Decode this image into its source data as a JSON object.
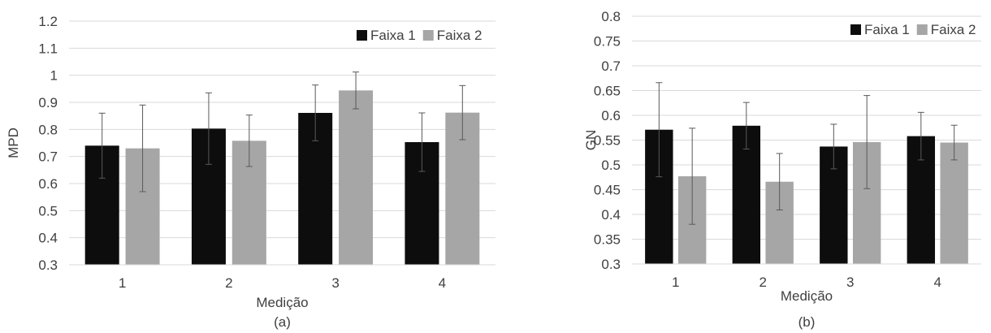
{
  "chart_data": [
    {
      "type": "bar",
      "caption": "(a)",
      "xlabel": "Medição",
      "ylabel": "MPD",
      "ylim": [
        0.3,
        1.2
      ],
      "y_step": 0.1,
      "y_tick_labels": [
        "0.3",
        "0.4",
        "0.5",
        "0.6",
        "0.7",
        "0.8",
        "0.9",
        "1",
        "1.1",
        "1.2"
      ],
      "categories": [
        "1",
        "2",
        "3",
        "4"
      ],
      "grid": true,
      "legend": "top-right",
      "series": [
        {
          "name": "Faixa 1",
          "color": "#0d0d0d",
          "values": [
            0.74,
            0.803,
            0.861,
            0.753
          ],
          "err": [
            0.12,
            0.132,
            0.103,
            0.108
          ]
        },
        {
          "name": "Faixa 2",
          "color": "#a6a6a6",
          "values": [
            0.73,
            0.758,
            0.944,
            0.862
          ],
          "err": [
            0.16,
            0.095,
            0.068,
            0.1
          ]
        }
      ]
    },
    {
      "type": "bar",
      "caption": "(b)",
      "xlabel": "Medição",
      "ylabel": "GN",
      "ylim": [
        0.3,
        0.8
      ],
      "y_step": 0.05,
      "y_tick_labels": [
        "0.3",
        "0.35",
        "0.4",
        "0.45",
        "0.5",
        "0.55",
        "0.6",
        "0.65",
        "0.7",
        "0.75",
        "0.8"
      ],
      "categories": [
        "1",
        "2",
        "3",
        "4"
      ],
      "grid": true,
      "legend": "top-right",
      "series": [
        {
          "name": "Faixa 1",
          "color": "#0d0d0d",
          "values": [
            0.571,
            0.579,
            0.537,
            0.558
          ],
          "err": [
            0.095,
            0.047,
            0.045,
            0.048
          ]
        },
        {
          "name": "Faixa 2",
          "color": "#a6a6a6",
          "values": [
            0.477,
            0.466,
            0.546,
            0.545
          ],
          "err": [
            0.097,
            0.057,
            0.094,
            0.035
          ]
        }
      ]
    }
  ]
}
